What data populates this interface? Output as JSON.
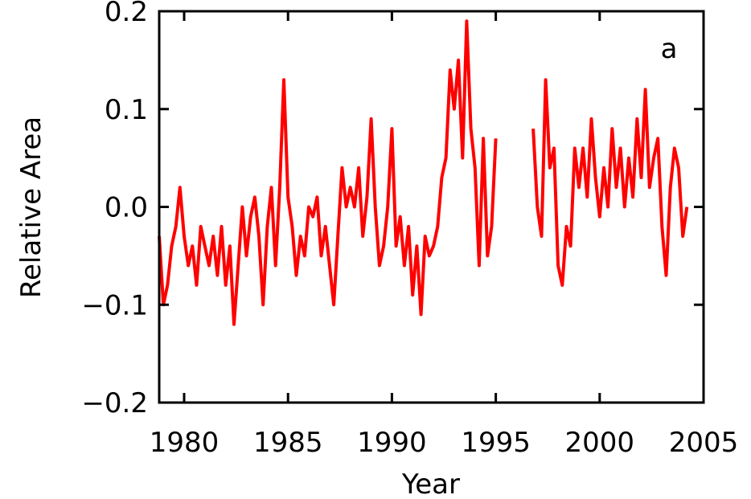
{
  "chart_data": {
    "type": "line",
    "panel_label": "a",
    "xlabel": "Year",
    "ylabel": "Relative Area",
    "xlim": [
      1978.8,
      2005
    ],
    "ylim": [
      -0.2,
      0.2
    ],
    "x_ticks": [
      1980,
      1985,
      1990,
      1995,
      2000,
      2005
    ],
    "x_tick_labels": [
      "1980",
      "1985",
      "1990",
      "1995",
      "2000",
      "2005"
    ],
    "y_ticks": [
      0.2,
      0.1,
      0.0,
      -0.1,
      -0.2
    ],
    "y_tick_labels": [
      "0.2",
      "0.1",
      "0.0",
      "−0.1",
      "−0.2"
    ],
    "grid": false,
    "line_color": "#ff0000",
    "series": [
      {
        "segments": [
          {
            "x": [
              1978.8,
              1979.0,
              1979.2,
              1979.4,
              1979.6,
              1979.8,
              1980.0,
              1980.2,
              1980.4,
              1980.6,
              1980.8,
              1981.0,
              1981.2,
              1981.4,
              1981.6,
              1981.8,
              1982.0,
              1982.2,
              1982.4,
              1982.6,
              1982.8,
              1983.0,
              1983.2,
              1983.4,
              1983.6,
              1983.8,
              1984.0,
              1984.2,
              1984.4,
              1984.6,
              1984.8,
              1985.0,
              1985.2,
              1985.4,
              1985.6,
              1985.8,
              1986.0,
              1986.2,
              1986.4,
              1986.6,
              1986.8,
              1987.0,
              1987.2,
              1987.4,
              1987.6,
              1987.8,
              1988.0,
              1988.2,
              1988.4,
              1988.6,
              1988.8,
              1989.0,
              1989.2,
              1989.4,
              1989.6,
              1989.8,
              1990.0,
              1990.2,
              1990.4,
              1990.6,
              1990.8,
              1991.0,
              1991.2,
              1991.4,
              1991.6,
              1991.8,
              1992.0,
              1992.2,
              1992.4,
              1992.6,
              1992.8,
              1993.0,
              1993.2,
              1993.4,
              1993.6,
              1993.8,
              1994.0,
              1994.2,
              1994.4,
              1994.6,
              1994.8,
              1995.0
            ],
            "y": [
              -0.03,
              -0.1,
              -0.08,
              -0.04,
              -0.02,
              0.02,
              -0.03,
              -0.06,
              -0.04,
              -0.08,
              -0.02,
              -0.04,
              -0.06,
              -0.03,
              -0.07,
              -0.02,
              -0.08,
              -0.04,
              -0.12,
              -0.06,
              0.0,
              -0.05,
              -0.01,
              0.01,
              -0.03,
              -0.1,
              -0.02,
              0.02,
              -0.06,
              0.02,
              0.13,
              0.01,
              -0.02,
              -0.07,
              -0.03,
              -0.05,
              0.0,
              -0.01,
              0.01,
              -0.05,
              -0.02,
              -0.06,
              -0.1,
              -0.03,
              0.04,
              0.0,
              0.02,
              0.0,
              0.04,
              -0.03,
              0.01,
              0.09,
              0.0,
              -0.06,
              -0.04,
              0.0,
              0.08,
              -0.04,
              -0.01,
              -0.06,
              -0.02,
              -0.09,
              -0.04,
              -0.11,
              -0.03,
              -0.05,
              -0.04,
              -0.02,
              0.03,
              0.05,
              0.14,
              0.1,
              0.15,
              0.05,
              0.19,
              0.08,
              0.04,
              -0.06,
              0.07,
              -0.05,
              -0.02,
              0.07
            ]
          },
          {
            "x": [
              1996.8,
              1997.0,
              1997.2,
              1997.4,
              1997.6,
              1997.8,
              1998.0,
              1998.2,
              1998.4,
              1998.6,
              1998.8,
              1999.0,
              1999.2,
              1999.4,
              1999.6,
              1999.8,
              2000.0,
              2000.2,
              2000.4,
              2000.6,
              2000.8,
              2001.0,
              2001.2,
              2001.4,
              2001.6,
              2001.8,
              2002.0,
              2002.2,
              2002.4,
              2002.6,
              2002.8,
              2003.0,
              2003.2,
              2003.4,
              2003.6,
              2003.8,
              2004.0,
              2004.2
            ],
            "y": [
              0.08,
              0.0,
              -0.03,
              0.13,
              0.04,
              0.06,
              -0.06,
              -0.08,
              -0.02,
              -0.04,
              0.06,
              0.02,
              0.06,
              0.01,
              0.09,
              0.03,
              -0.01,
              0.04,
              0.0,
              0.08,
              0.02,
              0.06,
              0.0,
              0.05,
              0.01,
              0.09,
              0.03,
              0.12,
              0.02,
              0.05,
              0.07,
              -0.02,
              -0.07,
              0.02,
              0.06,
              0.04,
              -0.03,
              0.0
            ]
          }
        ]
      }
    ]
  }
}
